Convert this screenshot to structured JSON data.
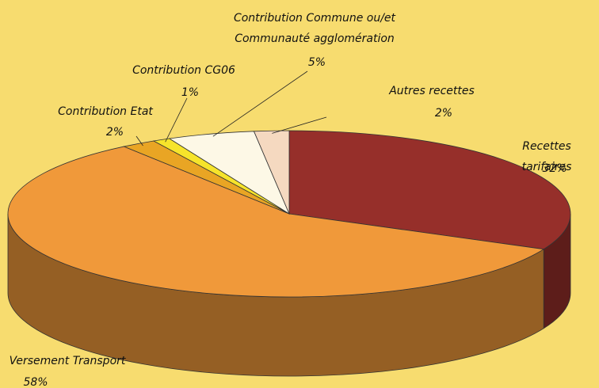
{
  "chart_data": {
    "type": "pie",
    "categories": [
      "Recettes tarifaires",
      "Versement Transport",
      "Contribution Etat",
      "Contribution CG06",
      "Contribution Commune ou/et\nCommunauté agglomération",
      "Autres recettes"
    ],
    "values": [
      32,
      58,
      2,
      1,
      5,
      2
    ],
    "value_labels": [
      "32%",
      "58%",
      "2%",
      "1%",
      "5%",
      "2%"
    ],
    "colors": [
      "#962f2a",
      "#f0993a",
      "#e9a524",
      "#f6e42b",
      "#fdf8e6",
      "#f5d9c0"
    ]
  }
}
